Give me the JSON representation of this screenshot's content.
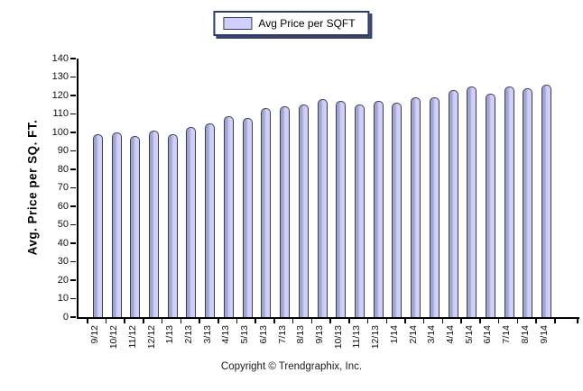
{
  "legend": {
    "label": "Avg Price per SQFT"
  },
  "footer": {
    "copyright": "Copyright © Trendgraphix, Inc."
  },
  "chart_data": {
    "type": "bar",
    "title": "",
    "xlabel": "",
    "ylabel": "Avg. Price per SQ. FT.",
    "ylim": [
      0,
      140
    ],
    "ytick_step": 10,
    "grid": false,
    "legend_position": "top-center",
    "categories": [
      "9/12",
      "10/12",
      "11/12",
      "12/12",
      "1/13",
      "2/13",
      "3/13",
      "4/13",
      "5/13",
      "6/13",
      "7/13",
      "8/13",
      "9/13",
      "10/13",
      "11/13",
      "12/13",
      "1/14",
      "2/14",
      "3/14",
      "4/14",
      "5/14",
      "6/14",
      "7/14",
      "8/14",
      "9/14"
    ],
    "series": [
      {
        "name": "Avg Price per SQFT",
        "values": [
          99,
          100,
          98,
          101,
          99,
          103,
          105,
          109,
          108,
          113,
          114,
          115,
          118,
          117,
          115,
          117,
          116,
          119,
          119,
          123,
          125,
          121,
          125,
          124,
          126
        ]
      }
    ],
    "colors": {
      "bar_fill": "#cfcffa",
      "bar_shade": "#9fa5cc",
      "bar_border": "#3c3c50",
      "axis": "#000000",
      "legend_border": "#2f3a68"
    }
  }
}
